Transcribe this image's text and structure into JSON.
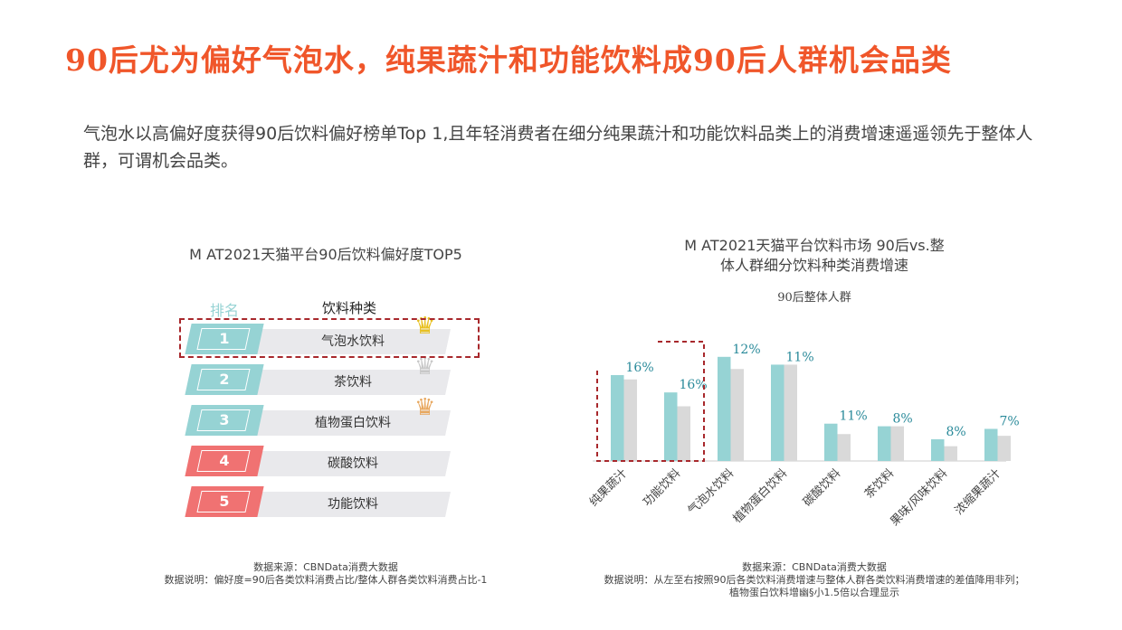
{
  "title": "90后尤为偏好气泡水，纯果蔬汁和功能饮料成90后人群机会品类",
  "description": "气泡水以高偏好度获得90后饮料偏好榜单Top 1,且年轻消费者在细分纯果蔬汁和功能饮料品类上的消费增速遥遥领先于整体人群，可谓机会品类。",
  "left_panel": {
    "title": "M AT2021天猫平台90后饮料偏好度TOP5",
    "col_rank": "排名",
    "col_type": "饮料种类",
    "rows": [
      {
        "rank": "1",
        "label": "气泡水饮料",
        "color": "#96d3d4",
        "crown": "#e8c020"
      },
      {
        "rank": "2",
        "label": "茶饮料",
        "color": "#96d3d4",
        "crown": "#c8c8c8"
      },
      {
        "rank": "3",
        "label": "植物蛋白饮料",
        "color": "#96d3d4",
        "crown": "#e8a860"
      },
      {
        "rank": "4",
        "label": "碳酸饮料",
        "color": "#f07272",
        "crown": ""
      },
      {
        "rank": "5",
        "label": "功能饮料",
        "color": "#f07272",
        "crown": ""
      }
    ],
    "source": "数据来源：CBNData消费大数据",
    "note": "数据说明：偏好度=90后各类饮料消费占比/整体人群各类饮料消费占比-1"
  },
  "right_panel": {
    "source": "数据来源：CBNData消费大数据",
    "note1": "数据说明：从左至右按照90后各类饮料消费增速与整体人群各类饮料消费增速的差值降用非列；",
    "note2": "植物蛋白饮料增幽§小1.5倍以合理显示"
  },
  "chart_data": {
    "type": "bar",
    "title": "M AT2021天猫平台饮料市场 90后vs.整体人群细分饮料种类消费增速",
    "title_line1": "M AT2021天猫平台饮料市场 90后vs.整",
    "title_line2": "体人群细分饮料种类消费增速",
    "legend": "90后整体人群",
    "categories": [
      "纯果蔬汁",
      "功能饮料",
      "气泡水饮料",
      "植物蛋白饮料",
      "碳酸饮料",
      "茶饮料",
      "果味/风味饮料",
      "浓缩果蔬汁"
    ],
    "series": [
      {
        "name": "90后",
        "color": "#96d3d4",
        "values": [
          99,
          79,
          120,
          111,
          43,
          40,
          25,
          37
        ]
      },
      {
        "name": "整体人群",
        "color": "#d9d9d9",
        "values": [
          94,
          63,
          106,
          111,
          31,
          40,
          17,
          29
        ]
      }
    ],
    "diff_labels": [
      "16%",
      "16%",
      "12%",
      "11%",
      "11%",
      "8%",
      "8%",
      "7%"
    ],
    "highlight": [
      "纯果蔬汁",
      "功能饮料"
    ],
    "ylim": [
      0,
      125
    ],
    "note": "relative values, no y axis shown"
  }
}
